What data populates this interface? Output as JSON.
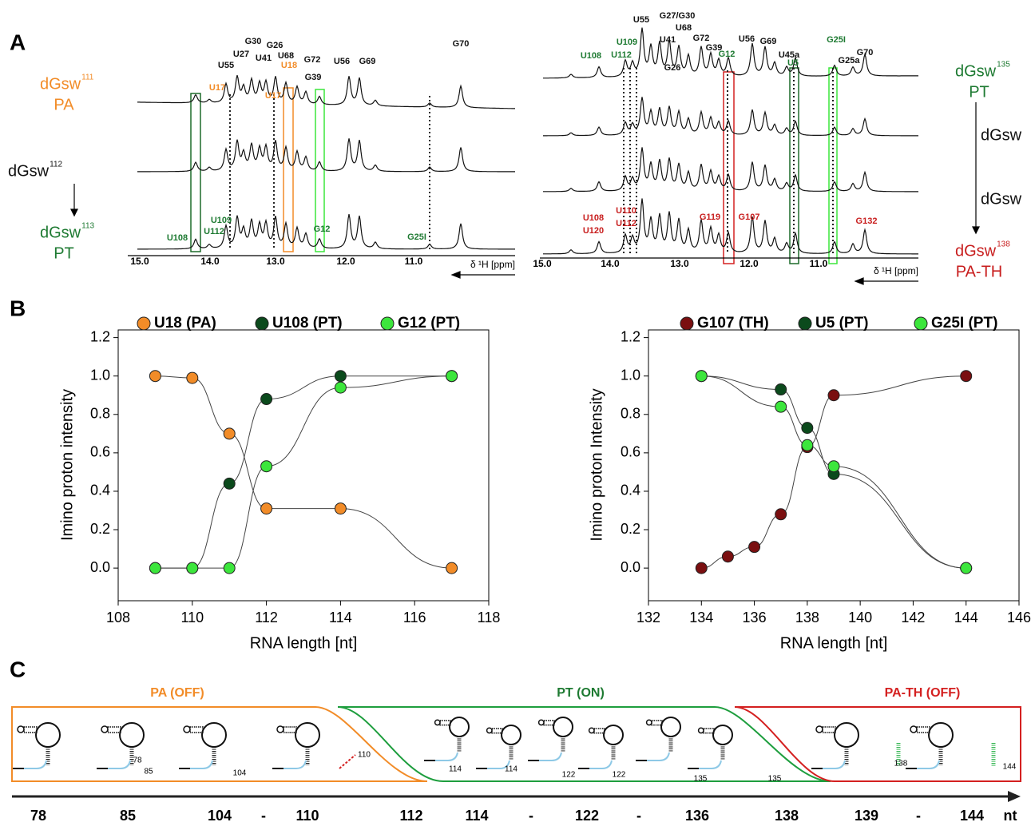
{
  "panel_labels": [
    "A",
    "B",
    "C"
  ],
  "panel_a": {
    "axis_label": "δ ¹H [ppm]",
    "left_ticks": [
      "15.0",
      "14.0",
      "13.0",
      "12.0",
      "11.0"
    ],
    "right_ticks": [
      "15.0",
      "14.0",
      "13.0",
      "12.0",
      "11.0"
    ],
    "left_peaks": [
      "U55",
      "U27",
      "G30",
      "U41",
      "G26",
      "U68",
      "G72",
      "G39",
      "U56",
      "G69",
      "G70",
      "U17",
      "U18",
      "U17",
      "U108",
      "U112",
      "U109",
      "G12",
      "G25I"
    ],
    "right_peaks": [
      "U55",
      "G27/G30",
      "U41",
      "U68",
      "G26",
      "G72",
      "G39",
      "G12",
      "U56",
      "G69",
      "U45a",
      "U5",
      "G25I",
      "G25a",
      "G70",
      "U109",
      "U108",
      "U112",
      "U108",
      "U120",
      "U110",
      "U112",
      "G119",
      "G107",
      "G132"
    ],
    "left_states": [
      {
        "name": "dGsw",
        "sup": "111",
        "state": "PA"
      },
      {
        "name": "dGsw",
        "sup": "112"
      },
      {
        "name": "dGsw",
        "sup": "113",
        "state": "PT"
      }
    ],
    "right_states": [
      {
        "name": "dGsw",
        "sup": "135",
        "state": "PT"
      },
      {
        "name": "dGsw"
      },
      {
        "name": "dGsw"
      },
      {
        "name": "dGsw",
        "sup": "138",
        "state": "PA-TH"
      }
    ]
  },
  "chart_data": [
    {
      "type": "scatter",
      "y_label": "Imino proton intensity",
      "x_label": "RNA length [nt]",
      "legend": "top",
      "xlim": [
        108,
        118
      ],
      "xticks": [
        108,
        110,
        112,
        114,
        116,
        118
      ],
      "ylim": [
        -0.17,
        1.24
      ],
      "yticks": [
        {
          "value": 0,
          "label": "0.0"
        },
        0.2,
        0.4,
        0.6,
        0.8,
        {
          "value": 1,
          "label": "1.0"
        },
        1.2
      ],
      "series": [
        {
          "name": "U18 (PA)",
          "color": "#f28c28",
          "x": [
            109,
            110,
            111,
            112,
            114,
            117
          ],
          "values": [
            1.0,
            0.99,
            0.7,
            0.31,
            0.31,
            0.0
          ]
        },
        {
          "name": "U108 (PT)",
          "color": "#0b4a1c",
          "x": [
            109,
            110,
            111,
            112,
            114,
            117
          ],
          "values": [
            0.0,
            0.0,
            0.44,
            0.88,
            1.0,
            1.0
          ]
        },
        {
          "name": "G12 (PT)",
          "color": "#3ce63c",
          "x": [
            109,
            110,
            111,
            112,
            114,
            117
          ],
          "values": [
            0.0,
            0.0,
            0.0,
            0.53,
            0.94,
            1.0
          ]
        }
      ]
    },
    {
      "type": "scatter",
      "y_label": "Imino proton Intensity",
      "x_label": "RNA length [nt]",
      "legend": "top",
      "xlim": [
        132,
        146
      ],
      "xticks": [
        132,
        134,
        136,
        138,
        140,
        142,
        144,
        146
      ],
      "ylim": [
        -0.17,
        1.24
      ],
      "yticks": [
        {
          "value": 0,
          "label": "0.0"
        },
        0.2,
        0.4,
        0.6,
        0.8,
        {
          "value": 1,
          "label": "1.0"
        },
        1.2
      ],
      "series": [
        {
          "name": "G107 (TH)",
          "color": "#7a0f10",
          "x": [
            134,
            135,
            136,
            137,
            138,
            139,
            144
          ],
          "values": [
            0.0,
            0.06,
            0.11,
            0.28,
            0.63,
            0.9,
            1.0
          ]
        },
        {
          "name": "U5 (PT)",
          "color": "#0b4a1c",
          "x": [
            134,
            137,
            138,
            139,
            144
          ],
          "values": [
            1.0,
            0.93,
            0.73,
            0.49,
            0.0
          ]
        },
        {
          "name": "G25I (PT)",
          "color": "#3ce63c",
          "x": [
            134,
            137,
            138,
            139,
            144
          ],
          "values": [
            1.0,
            0.84,
            0.64,
            0.53,
            0.0
          ]
        }
      ]
    }
  ],
  "panel_c": {
    "phases": [
      "PA (OFF)",
      "PT (ON)",
      "PA-TH (OFF)"
    ],
    "structure_labels": [
      "78",
      "85",
      "104",
      "110",
      "114",
      "114",
      "122",
      "122",
      "135",
      "135",
      "138",
      "144"
    ],
    "axis_labels": [
      "78",
      "85",
      "104",
      "-",
      "110",
      "112",
      "114",
      "-",
      "122",
      "-",
      "136",
      "138",
      "139",
      "-",
      "144",
      "nt"
    ]
  }
}
